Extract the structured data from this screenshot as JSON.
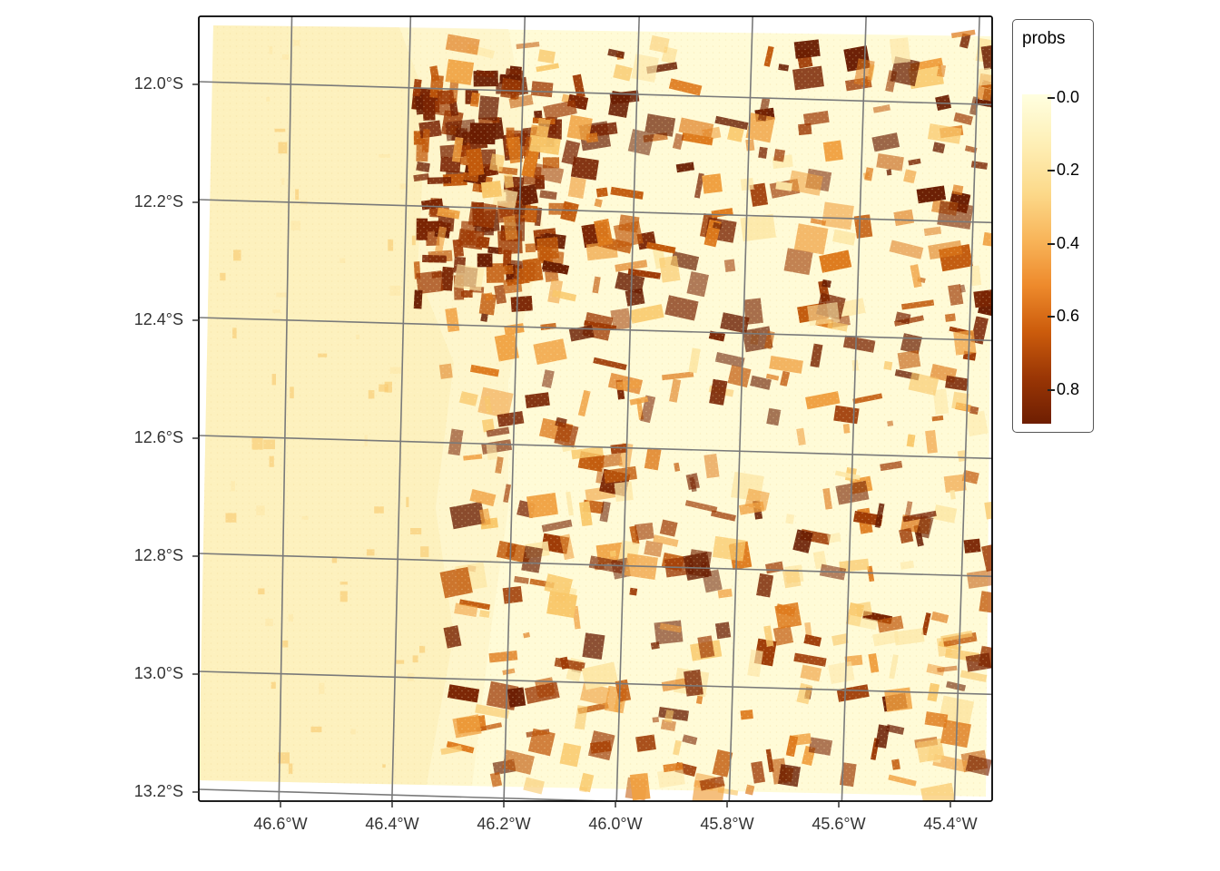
{
  "map": {
    "legend_title": "probs",
    "legend_ticks": [
      "0.0",
      "0.2",
      "0.4",
      "0.6",
      "0.8"
    ],
    "legend_values": [
      0.0,
      0.2,
      0.4,
      0.6,
      0.8
    ],
    "lat_labels": [
      "12.0°S",
      "12.2°S",
      "12.4°S",
      "12.6°S",
      "12.8°S",
      "13.0°S",
      "13.2°S"
    ],
    "lon_labels": [
      "46.6°W",
      "46.4°W",
      "46.2°W",
      "46.0°W",
      "45.8°W",
      "45.6°W",
      "45.4°W"
    ],
    "colors": {
      "low": "#FFFFE0",
      "mid": "#F39C3A",
      "high": "#6E1E02",
      "graticule": "#7a7a7a",
      "frame": "#000000"
    }
  }
}
